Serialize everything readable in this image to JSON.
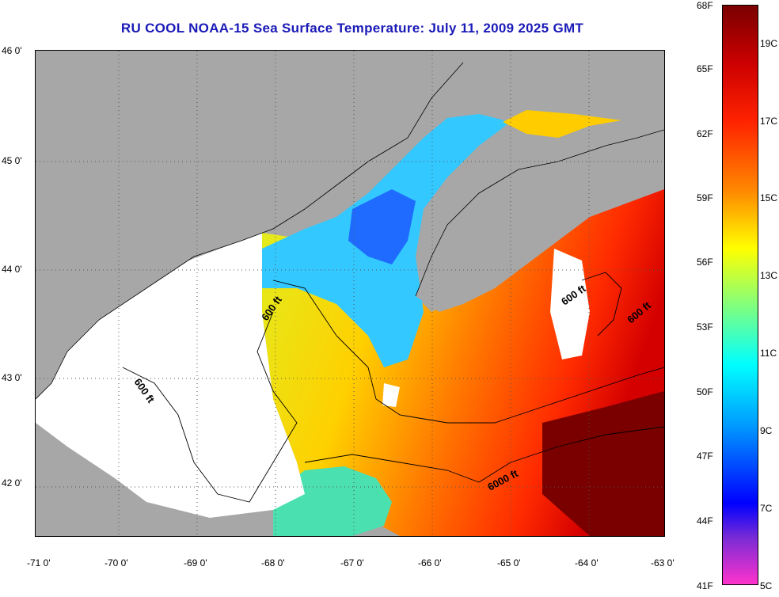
{
  "title": "RU COOL  NOAA-15  Sea Surface Temperature:  July 11, 2009 2025 GMT",
  "latitude_ticks": [
    "46 0'",
    "45 0'",
    "44 0'",
    "43 0'",
    "42 0'"
  ],
  "longitude_ticks": [
    "-71 0'",
    "-70 0'",
    "-69 0'",
    "-68 0'",
    "-67 0'",
    "-66 0'",
    "-65 0'",
    "-64 0'",
    "-63 0'"
  ],
  "contour_labels": [
    "600 ft",
    "600 ft",
    "600 ft",
    "600 ft",
    "6000 ft"
  ],
  "colorbar": {
    "fahrenheit": [
      "68F",
      "65F",
      "62F",
      "59F",
      "56F",
      "53F",
      "50F",
      "47F",
      "44F",
      "41F"
    ],
    "celsius": [
      "19C",
      "17C",
      "15C",
      "13C",
      "11C",
      "9C",
      "7C",
      "5C"
    ]
  },
  "colors": {
    "land": "#a7a7a7",
    "cloud": "#ffffff",
    "title": "#1a1ab8",
    "scale": [
      "#ff33cc",
      "#7a2bd6",
      "#0000ff",
      "#00a0ff",
      "#00ffff",
      "#7fff7f",
      "#ffff00",
      "#ff9900",
      "#ff2200",
      "#7a0000"
    ]
  }
}
